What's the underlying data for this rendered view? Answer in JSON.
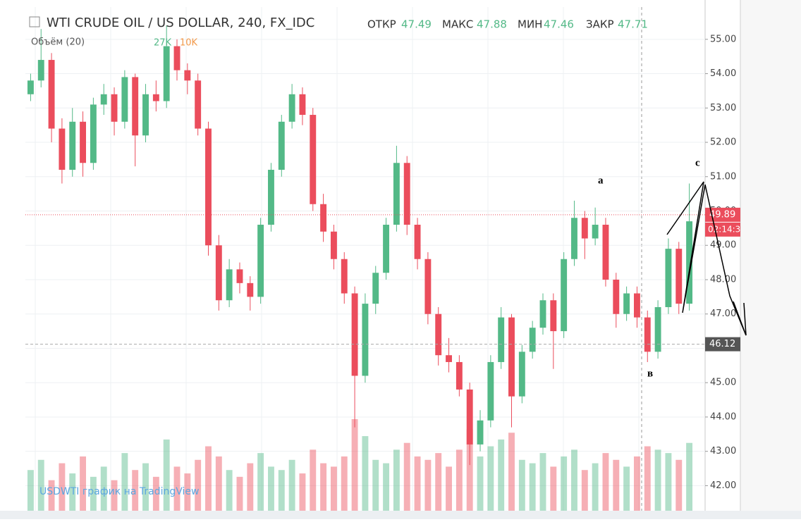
{
  "chart_data": {
    "type": "candlestick",
    "title": "WTI CRUDE OIL / US DOLLAR, 240, FX_IDC",
    "ohlc_labels": [
      "ОТКР",
      "МАКС",
      "МИН",
      "ЗАКР"
    ],
    "ohlc_values": [
      "47.49",
      "47.88",
      "47.46",
      "47.71"
    ],
    "volume_label": "Объём (20)",
    "volume_values": [
      "27K",
      "10K"
    ],
    "watermark": "USDWTI график на TradingView",
    "annotations": [
      "a",
      "c",
      "в"
    ],
    "last_price": 49.89,
    "countdown": "02:14:3",
    "ref_price": 46.12,
    "up_color": "#53b987",
    "down_color": "#eb4d5c",
    "ylim": [
      41.27,
      55.94
    ],
    "yticks": [
      {
        "value": 42,
        "label": "42.00"
      },
      {
        "value": 43,
        "label": "43.00"
      },
      {
        "value": 44,
        "label": "44.00"
      },
      {
        "value": 45,
        "label": "45.00"
      },
      {
        "value": 46,
        "label": "46.00"
      },
      {
        "value": 47,
        "label": "47.00"
      },
      {
        "value": 48,
        "label": "48.00"
      },
      {
        "value": 49,
        "label": "49.00"
      },
      {
        "value": 50,
        "label": "50.00"
      },
      {
        "value": 51,
        "label": "51.00"
      },
      {
        "value": 52,
        "label": "52.00"
      },
      {
        "value": 53,
        "label": "53.00"
      },
      {
        "value": 54,
        "label": "54.00"
      },
      {
        "value": 55,
        "label": "55.00"
      }
    ],
    "grid": true,
    "open": [
      53.4,
      53.8,
      54.4,
      52.4,
      51.2,
      52.6,
      51.4,
      53.1,
      53.4,
      52.6,
      53.9,
      52.2,
      53.4,
      53.2,
      54.8,
      54.1,
      53.8,
      52.4,
      49.0,
      47.4,
      48.3,
      47.9,
      47.5,
      49.6,
      51.2,
      52.6,
      53.4,
      52.8,
      50.2,
      49.4,
      48.6,
      47.6,
      45.2,
      47.3,
      48.2,
      49.6,
      51.4,
      49.6,
      48.6,
      47.0,
      45.8,
      45.6,
      44.8,
      43.2,
      43.9,
      45.6,
      46.9,
      44.6,
      45.9,
      46.6,
      47.4,
      46.5,
      48.6,
      49.8,
      49.2,
      49.6,
      48.0,
      47.0,
      47.6,
      46.9,
      45.9,
      47.2,
      48.9,
      47.3
    ],
    "high": [
      54.0,
      55.3,
      54.6,
      52.7,
      53.0,
      52.9,
      53.3,
      53.7,
      53.6,
      54.1,
      54.0,
      53.7,
      53.8,
      55.4,
      55.0,
      54.3,
      54.0,
      52.6,
      49.3,
      48.6,
      48.5,
      48.1,
      49.8,
      51.4,
      52.8,
      53.7,
      53.6,
      53.0,
      50.5,
      49.6,
      48.8,
      47.8,
      47.6,
      48.4,
      49.8,
      51.9,
      51.6,
      49.8,
      48.8,
      47.2,
      46.3,
      45.8,
      45.0,
      44.2,
      45.8,
      47.2,
      47.0,
      46.1,
      46.8,
      47.6,
      47.6,
      48.8,
      50.3,
      50.0,
      50.1,
      49.8,
      48.2,
      47.8,
      47.8,
      47.1,
      47.4,
      49.2,
      49.1,
      50.8
    ],
    "low": [
      53.2,
      53.6,
      52.0,
      50.8,
      51.0,
      51.0,
      51.2,
      52.8,
      52.2,
      52.4,
      51.3,
      52.0,
      52.9,
      53.0,
      53.8,
      53.4,
      52.2,
      48.7,
      47.1,
      47.2,
      47.6,
      47.1,
      47.3,
      49.4,
      51.0,
      52.4,
      52.5,
      50.0,
      49.1,
      48.3,
      47.3,
      43.7,
      45.0,
      47.0,
      48.0,
      49.4,
      49.3,
      48.3,
      46.7,
      45.5,
      45.3,
      44.6,
      42.6,
      43.0,
      43.7,
      45.4,
      43.7,
      44.4,
      45.7,
      46.4,
      45.4,
      46.3,
      48.4,
      48.6,
      49.0,
      47.8,
      46.6,
      46.8,
      46.6,
      45.6,
      45.7,
      47.0,
      47.0,
      47.1
    ],
    "close": [
      53.8,
      54.4,
      52.4,
      51.2,
      52.6,
      51.4,
      53.1,
      53.4,
      52.6,
      53.9,
      52.2,
      53.4,
      53.2,
      54.8,
      54.1,
      53.8,
      52.4,
      49.0,
      47.4,
      48.3,
      47.9,
      47.5,
      49.6,
      51.2,
      52.6,
      53.4,
      52.8,
      50.2,
      49.4,
      48.6,
      47.6,
      45.2,
      47.3,
      48.2,
      49.6,
      51.4,
      49.6,
      48.6,
      47.0,
      45.8,
      45.6,
      44.8,
      43.2,
      43.9,
      45.6,
      46.9,
      44.6,
      45.9,
      46.6,
      47.4,
      46.5,
      48.6,
      49.8,
      49.2,
      49.6,
      48.0,
      47.0,
      47.6,
      46.9,
      45.9,
      47.2,
      48.9,
      47.3,
      49.7
    ],
    "volume": [
      12000,
      15000,
      9000,
      14000,
      11000,
      16000,
      10000,
      13000,
      9000,
      17000,
      12000,
      14000,
      10000,
      21000,
      13000,
      11000,
      15000,
      19000,
      16000,
      12000,
      10000,
      14000,
      17000,
      13000,
      12000,
      15000,
      11000,
      18000,
      14000,
      13000,
      16000,
      27000,
      22000,
      15000,
      14000,
      18000,
      20000,
      16000,
      15000,
      17000,
      13000,
      18000,
      24000,
      16000,
      19000,
      21000,
      23000,
      15000,
      14000,
      17000,
      13000,
      16000,
      18000,
      12000,
      14000,
      17000,
      15000,
      13000,
      16000,
      19000,
      18000,
      17000,
      15000,
      20000
    ]
  }
}
